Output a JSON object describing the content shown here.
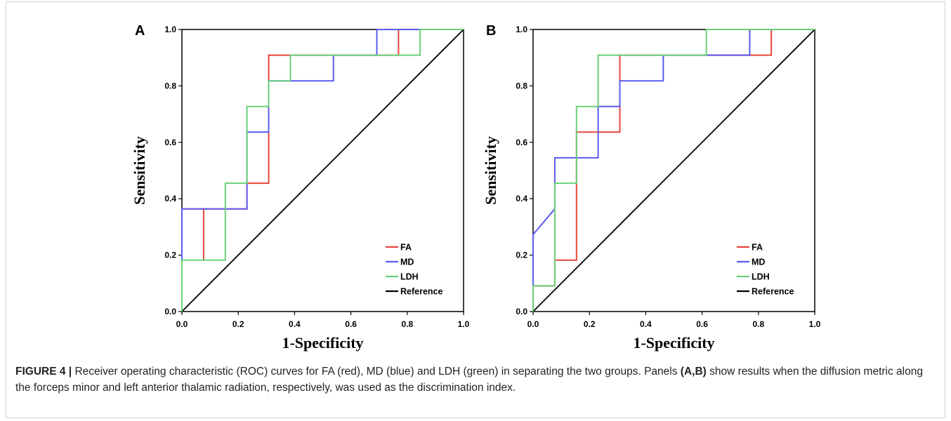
{
  "caption": {
    "label": "FIGURE 4 |",
    "part1": " Receiver operating characteristic (ROC) curves for FA (red), MD (blue) and LDH (green) in separating the two groups. Panels ",
    "panels_ref": "(A,B)",
    "part2": " show results when the diffusion metric along the forceps minor and left anterior thalamic radiation, respectively, was used as the discrimination index."
  },
  "colors": {
    "FA": "#e8443a",
    "MD": "#5b5bf0",
    "LDH": "#6ad07a",
    "Reference": "#000000",
    "frame": "#000000"
  },
  "chart_data": [
    {
      "panel": "A",
      "type": "line",
      "xlabel": "1-Specificity",
      "ylabel": "Sensitivity",
      "xlim": [
        0,
        1
      ],
      "ylim": [
        0,
        1
      ],
      "x_ticks": [
        "0.0",
        "0.2",
        "0.4",
        "0.6",
        "0.8",
        "1.0"
      ],
      "y_ticks": [
        "0.0",
        "0.2",
        "0.4",
        "0.6",
        "0.8",
        "1.0"
      ],
      "grid": false,
      "legend_position": "bottom-right",
      "series": [
        {
          "name": "FA",
          "color": "#e8443a",
          "points": [
            [
              0,
              0
            ],
            [
              0,
              0.364
            ],
            [
              0.077,
              0.364
            ],
            [
              0.077,
              0.182
            ],
            [
              0.077,
              0.364
            ],
            [
              0.231,
              0.364
            ],
            [
              0.231,
              0.455
            ],
            [
              0.308,
              0.455
            ],
            [
              0.308,
              0.909
            ],
            [
              0.385,
              0.909
            ],
            [
              0.769,
              0.909
            ],
            [
              0.769,
              1.0
            ],
            [
              1,
              1
            ]
          ]
        },
        {
          "name": "MD",
          "color": "#5b5bf0",
          "points": [
            [
              0,
              0
            ],
            [
              0,
              0.364
            ],
            [
              0.231,
              0.364
            ],
            [
              0.231,
              0.636
            ],
            [
              0.308,
              0.636
            ],
            [
              0.308,
              0.818
            ],
            [
              0.538,
              0.818
            ],
            [
              0.538,
              0.909
            ],
            [
              0.692,
              0.909
            ],
            [
              0.692,
              1.0
            ],
            [
              1,
              1
            ]
          ]
        },
        {
          "name": "LDH",
          "color": "#6ad07a",
          "points": [
            [
              0,
              0
            ],
            [
              0,
              0.182
            ],
            [
              0.154,
              0.182
            ],
            [
              0.154,
              0.455
            ],
            [
              0.231,
              0.455
            ],
            [
              0.231,
              0.727
            ],
            [
              0.308,
              0.727
            ],
            [
              0.308,
              0.818
            ],
            [
              0.385,
              0.818
            ],
            [
              0.385,
              0.909
            ],
            [
              0.846,
              0.909
            ],
            [
              0.846,
              1.0
            ],
            [
              1,
              1
            ]
          ]
        },
        {
          "name": "Reference",
          "color": "#000000",
          "points": [
            [
              0,
              0
            ],
            [
              1,
              1
            ]
          ]
        }
      ]
    },
    {
      "panel": "B",
      "type": "line",
      "xlabel": "1-Specificity",
      "ylabel": "Sensitivity",
      "xlim": [
        0,
        1
      ],
      "ylim": [
        0,
        1
      ],
      "x_ticks": [
        "0.0",
        "0.2",
        "0.4",
        "0.6",
        "0.8",
        "1.0"
      ],
      "y_ticks": [
        "0.0",
        "0.2",
        "0.4",
        "0.6",
        "0.8",
        "1.0"
      ],
      "grid": false,
      "legend_position": "bottom-right",
      "series": [
        {
          "name": "FA",
          "color": "#e8443a",
          "points": [
            [
              0,
              0
            ],
            [
              0,
              0.091
            ],
            [
              0.077,
              0.091
            ],
            [
              0.077,
              0.182
            ],
            [
              0.154,
              0.182
            ],
            [
              0.154,
              0.636
            ],
            [
              0.308,
              0.636
            ],
            [
              0.308,
              0.909
            ],
            [
              0.846,
              0.909
            ],
            [
              0.846,
              1.0
            ],
            [
              1,
              1
            ]
          ]
        },
        {
          "name": "MD",
          "color": "#5b5bf0",
          "points": [
            [
              0,
              0
            ],
            [
              0,
              0.273
            ],
            [
              0.077,
              0.364
            ],
            [
              0.077,
              0.545
            ],
            [
              0.231,
              0.545
            ],
            [
              0.231,
              0.727
            ],
            [
              0.308,
              0.727
            ],
            [
              0.308,
              0.818
            ],
            [
              0.462,
              0.818
            ],
            [
              0.462,
              0.909
            ],
            [
              0.769,
              0.909
            ],
            [
              0.769,
              1.0
            ],
            [
              1,
              1
            ]
          ]
        },
        {
          "name": "LDH",
          "color": "#6ad07a",
          "points": [
            [
              0,
              0
            ],
            [
              0,
              0.091
            ],
            [
              0.077,
              0.091
            ],
            [
              0.077,
              0.455
            ],
            [
              0.154,
              0.455
            ],
            [
              0.154,
              0.727
            ],
            [
              0.231,
              0.727
            ],
            [
              0.231,
              0.909
            ],
            [
              0.615,
              0.909
            ],
            [
              0.615,
              1.0
            ],
            [
              1,
              1
            ]
          ]
        },
        {
          "name": "Reference",
          "color": "#000000",
          "points": [
            [
              0,
              0
            ],
            [
              1,
              1
            ]
          ]
        }
      ]
    }
  ]
}
